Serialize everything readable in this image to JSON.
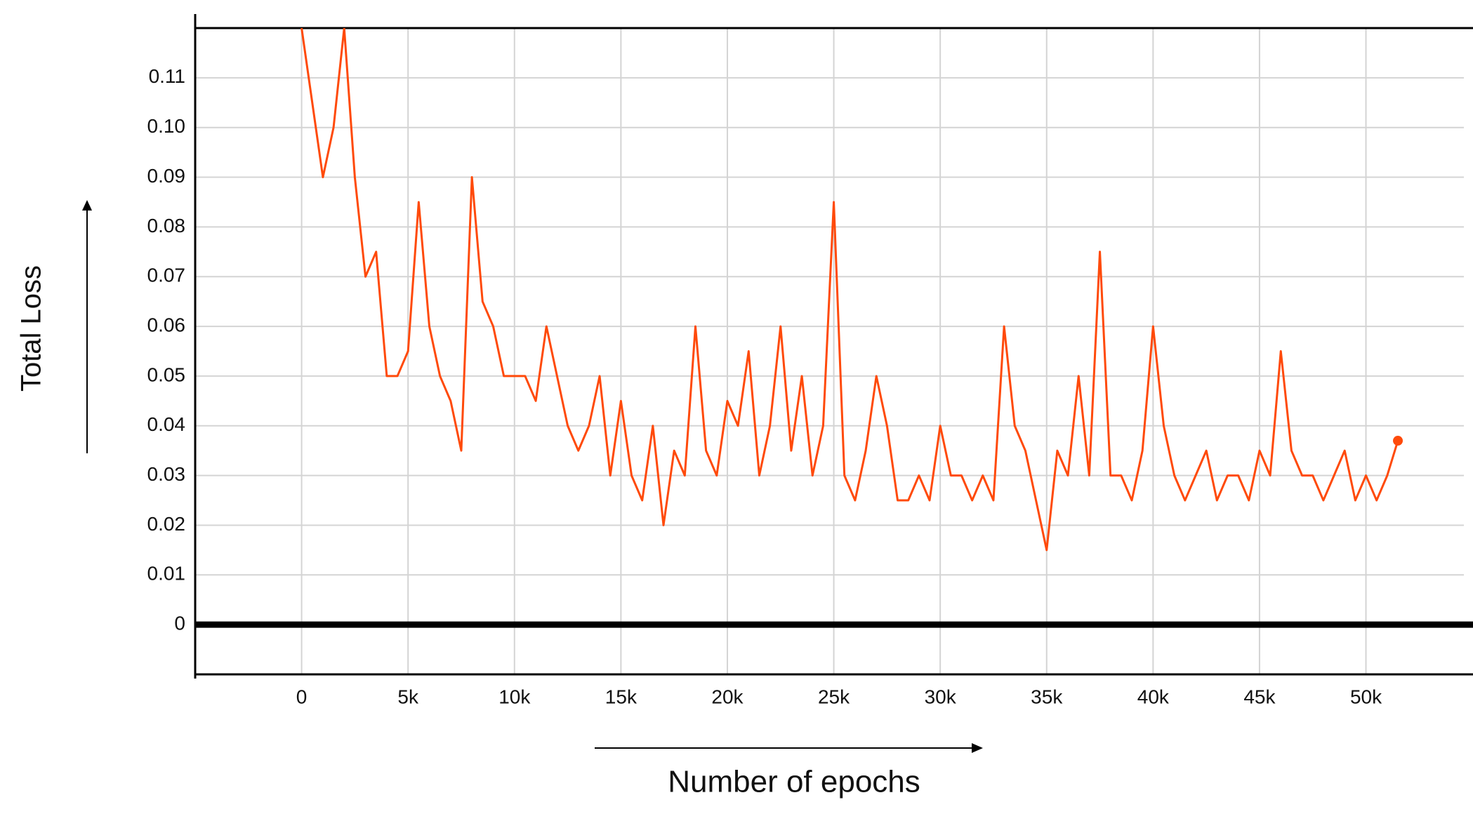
{
  "chart_data": {
    "type": "line",
    "xlabel": "Number of epochs",
    "ylabel": "Total Loss",
    "color": "#ff4a0a",
    "x": [
      0,
      500,
      1000,
      1500,
      2000,
      2500,
      3000,
      3500,
      4000,
      4500,
      5000,
      5500,
      6000,
      6500,
      7000,
      7500,
      8000,
      8500,
      9000,
      9500,
      10000,
      10500,
      11000,
      11500,
      12000,
      12500,
      13000,
      13500,
      14000,
      14500,
      15000,
      15500,
      16000,
      16500,
      17000,
      17500,
      18000,
      18500,
      19000,
      19500,
      20000,
      20500,
      21000,
      21500,
      22000,
      22500,
      23000,
      23500,
      24000,
      24500,
      25000,
      25500,
      26000,
      26500,
      27000,
      27500,
      28000,
      28500,
      29000,
      29500,
      30000,
      30500,
      31000,
      31500,
      32000,
      32500,
      33000,
      33500,
      34000,
      34500,
      35000,
      35500,
      36000,
      36500,
      37000,
      37500,
      38000,
      38500,
      39000,
      39500,
      40000,
      40500,
      41000,
      41500,
      42000,
      42500,
      43000,
      43500,
      44000,
      44500,
      45000,
      45500,
      46000,
      46500,
      47000,
      47500,
      48000,
      48500,
      49000,
      49500,
      50000,
      50500,
      51000,
      51500
    ],
    "values": [
      0.12,
      0.105,
      0.09,
      0.1,
      0.12,
      0.09,
      0.07,
      0.075,
      0.05,
      0.05,
      0.055,
      0.085,
      0.06,
      0.05,
      0.045,
      0.035,
      0.09,
      0.065,
      0.06,
      0.05,
      0.05,
      0.05,
      0.045,
      0.06,
      0.05,
      0.04,
      0.035,
      0.04,
      0.05,
      0.03,
      0.045,
      0.03,
      0.025,
      0.04,
      0.02,
      0.035,
      0.03,
      0.06,
      0.035,
      0.03,
      0.045,
      0.04,
      0.055,
      0.03,
      0.04,
      0.06,
      0.035,
      0.05,
      0.03,
      0.04,
      0.085,
      0.03,
      0.025,
      0.035,
      0.05,
      0.04,
      0.025,
      0.025,
      0.03,
      0.025,
      0.04,
      0.03,
      0.03,
      0.025,
      0.03,
      0.025,
      0.06,
      0.04,
      0.035,
      0.025,
      0.015,
      0.035,
      0.03,
      0.05,
      0.03,
      0.075,
      0.03,
      0.03,
      0.025,
      0.035,
      0.06,
      0.04,
      0.03,
      0.025,
      0.03,
      0.035,
      0.025,
      0.03,
      0.03,
      0.025,
      0.035,
      0.03,
      0.055,
      0.035,
      0.03,
      0.03,
      0.025,
      0.03,
      0.035,
      0.025,
      0.03,
      0.025,
      0.03,
      0.037
    ],
    "xlim": [
      -5000,
      54600
    ],
    "ylim": [
      -0.01,
      0.12
    ],
    "xticks": [
      0,
      {
        "value": 5000,
        "label": "5k"
      },
      {
        "value": 10000,
        "label": "10k"
      },
      {
        "value": 15000,
        "label": "15k"
      },
      {
        "value": 20000,
        "label": "20k"
      },
      {
        "value": 25000,
        "label": "25k"
      },
      {
        "value": 30000,
        "label": "30k"
      },
      {
        "value": 35000,
        "label": "35k"
      },
      {
        "value": 40000,
        "label": "40k"
      },
      {
        "value": 45000,
        "label": "45k"
      },
      {
        "value": 50000,
        "label": "50k"
      }
    ],
    "yticks": [
      0,
      0.01,
      0.02,
      0.03,
      0.04,
      0.05,
      0.06,
      0.07,
      0.08,
      0.09,
      {
        "value": 0.1,
        "label": "0.10"
      },
      0.11
    ],
    "grid": true
  }
}
